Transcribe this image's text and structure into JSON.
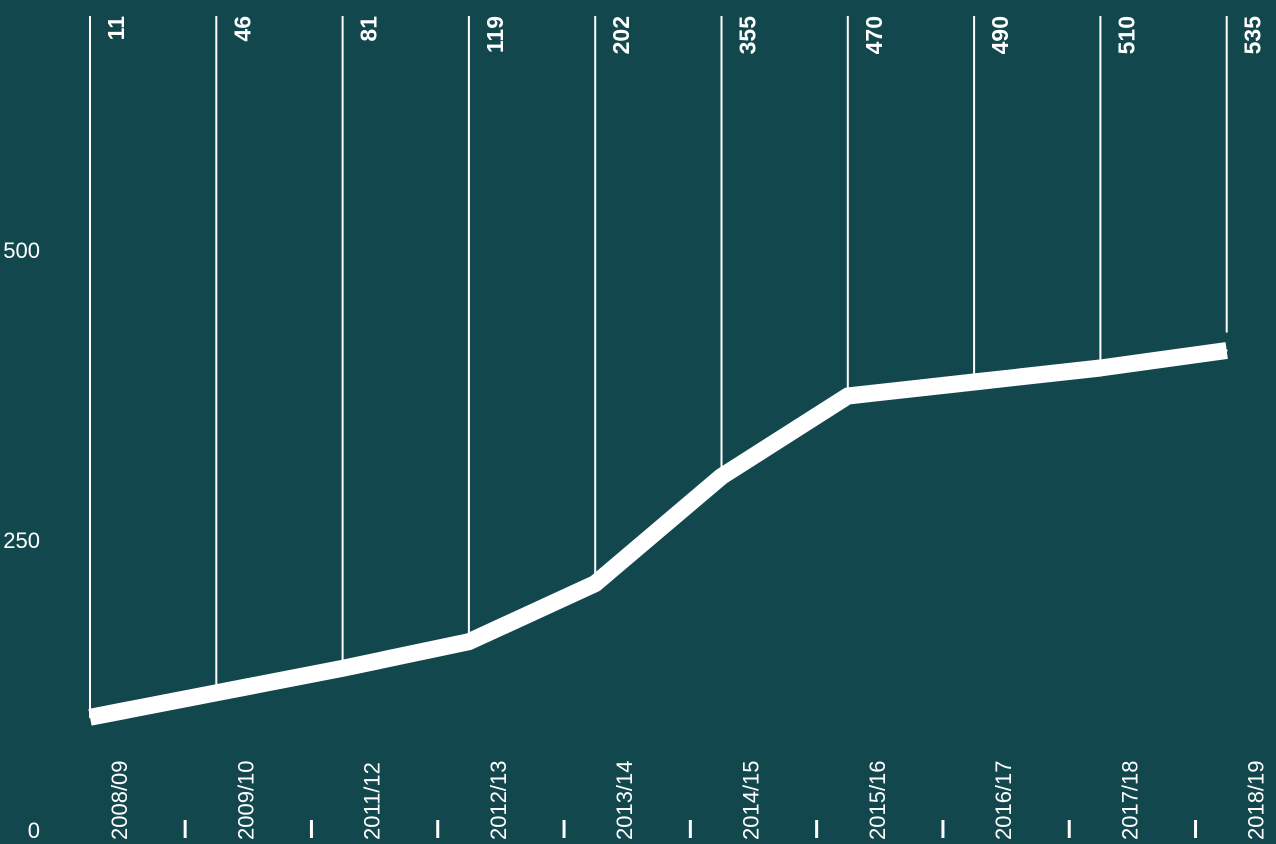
{
  "chart_data": {
    "type": "line",
    "categories": [
      "2008/09",
      "2009/10",
      "2011/12",
      "2012/13",
      "2013/14",
      "2014/15",
      "2015/16",
      "2016/17",
      "2017/18",
      "2018/19"
    ],
    "values": [
      11,
      46,
      81,
      119,
      202,
      355,
      470,
      490,
      510,
      535
    ],
    "y_ticks": [
      "0",
      "250",
      "500"
    ],
    "ylim": [
      0,
      700
    ],
    "grid": false,
    "colors": {
      "background": "#12484d",
      "line": "#ffffff",
      "text": "#ffffff"
    }
  }
}
